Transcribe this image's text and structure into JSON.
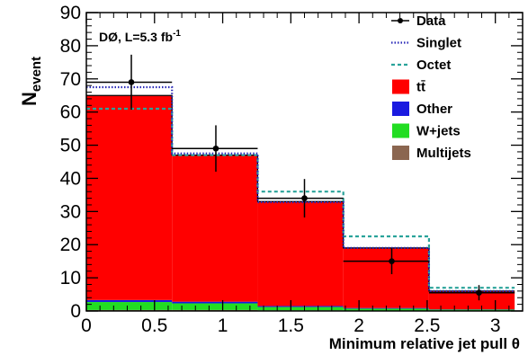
{
  "chart_data": {
    "type": "bar",
    "annotation": "DØ, L=5.3 fb",
    "annotation_sup": "-1",
    "xlabel": "Minimum relative jet pull θ",
    "ylabel_main": "N",
    "ylabel_sub": "event",
    "xlim": [
      0,
      3.2
    ],
    "ylim": [
      0,
      90
    ],
    "x_ticks": [
      "0",
      "0.5",
      "1",
      "1.5",
      "2",
      "2.5",
      "3"
    ],
    "x_tick_values": [
      0,
      0.5,
      1,
      1.5,
      2,
      2.5,
      3
    ],
    "y_ticks": [
      "0",
      "10",
      "20",
      "30",
      "40",
      "50",
      "60",
      "70",
      "80",
      "90"
    ],
    "y_tick_values": [
      0,
      10,
      20,
      30,
      40,
      50,
      60,
      70,
      80,
      90
    ],
    "bin_edges": [
      0,
      0.6283,
      1.2566,
      1.885,
      2.5133,
      3.1416
    ],
    "stack": [
      {
        "name": "Multijets",
        "color": "#8b6650",
        "values": [
          0.3,
          0.3,
          0.2,
          0.1,
          0.1
        ]
      },
      {
        "name": "W+jets",
        "color": "#22dd22",
        "values": [
          2.4,
          2.0,
          1.0,
          0.6,
          0.3
        ]
      },
      {
        "name": "Other",
        "color": "#1a1ae0",
        "values": [
          0.6,
          0.5,
          0.3,
          0.2,
          0.1
        ]
      },
      {
        "name": "tt̄",
        "color": "#ff0000",
        "values": [
          61.7,
          44.2,
          31.5,
          18.1,
          5.5
        ]
      }
    ],
    "singlet": {
      "name": "Singlet",
      "color": "#2a2ab8",
      "values": [
        67.5,
        47.5,
        32.8,
        19.0,
        6.0
      ]
    },
    "octet": {
      "name": "Octet",
      "color": "#2aa39a",
      "values": [
        61.0,
        47.0,
        36.0,
        22.5,
        7.0
      ]
    },
    "data": {
      "name": "Data",
      "x": [
        0.33,
        0.95,
        1.6,
        2.24,
        2.88
      ],
      "y": [
        69,
        49,
        34,
        15,
        5.5
      ],
      "err": [
        8.3,
        7.0,
        5.8,
        3.9,
        2.3
      ]
    },
    "legend_position": "top-right",
    "legend": [
      {
        "label": "Data",
        "style": "marker"
      },
      {
        "label": "Singlet",
        "style": "dotted",
        "color": "#2a2ab8"
      },
      {
        "label": "Octet",
        "style": "dashed",
        "color": "#2aa39a"
      },
      {
        "label": "tt̄",
        "style": "box",
        "color": "#ff0000"
      },
      {
        "label": "Other",
        "style": "box",
        "color": "#1a1ae0"
      },
      {
        "label": "W+jets",
        "style": "box",
        "color": "#22dd22"
      },
      {
        "label": "Multijets",
        "style": "box",
        "color": "#8b6650"
      }
    ]
  }
}
